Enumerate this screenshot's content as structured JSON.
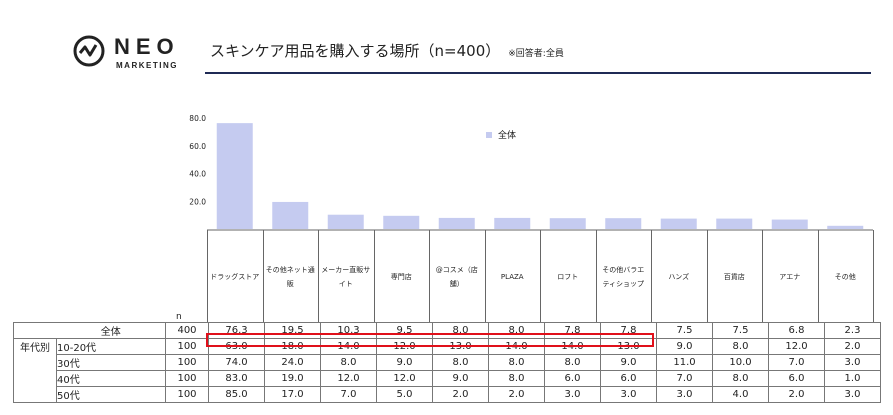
{
  "logo": {
    "brand": "NEO",
    "sub": "MARKETING"
  },
  "title": "スキンケア用品を購入する場所（n=400）",
  "note": "※回答者:全員",
  "chart_data": {
    "type": "bar",
    "categories": [
      "ドラッグストア",
      "その他ネット通販",
      "メーカー直販サイト",
      "専門店",
      "@コスメ(店舗)",
      "PLAZA",
      "ロフト",
      "その他バラエティショップ",
      "ハンズ",
      "百貨店",
      "アエナ",
      "その他"
    ],
    "category_labels": [
      [
        "ドラッグストア"
      ],
      [
        "その他ネット通",
        "販"
      ],
      [
        "メーカー直販サ",
        "イト"
      ],
      [
        "専門店"
      ],
      [
        "@コスメ（店",
        "舗）"
      ],
      [
        "PLAZA"
      ],
      [
        "ロフト"
      ],
      [
        "その他バラエ",
        "ティショップ"
      ],
      [
        "ハンズ"
      ],
      [
        "百貨店"
      ],
      [
        "アエナ"
      ],
      [
        "その他"
      ]
    ],
    "series": [
      {
        "name": "全体",
        "values": [
          76.3,
          19.5,
          10.3,
          9.5,
          8.0,
          8.0,
          7.8,
          7.8,
          7.5,
          7.5,
          6.8,
          2.3
        ]
      }
    ],
    "yticks": [
      "20.0",
      "40.0",
      "60.0",
      "80.0"
    ],
    "ylim": [
      0,
      80
    ],
    "legend": "top-center",
    "bar_color": "#c5cbf0"
  },
  "table": {
    "n_header": "n",
    "group_label": "年代別",
    "rows": [
      {
        "label": "全体",
        "n": "400",
        "values": [
          "76.3",
          "19.5",
          "10.3",
          "9.5",
          "8.0",
          "8.0",
          "7.8",
          "7.8",
          "7.5",
          "7.5",
          "6.8",
          "2.3"
        ]
      },
      {
        "label": "10-20代",
        "n": "100",
        "values": [
          "63.0",
          "18.0",
          "14.0",
          "12.0",
          "13.0",
          "14.0",
          "14.0",
          "13.0",
          "9.0",
          "8.0",
          "12.0",
          "2.0"
        ]
      },
      {
        "label": "30代",
        "n": "100",
        "values": [
          "74.0",
          "24.0",
          "8.0",
          "9.0",
          "8.0",
          "8.0",
          "8.0",
          "9.0",
          "11.0",
          "10.0",
          "7.0",
          "3.0"
        ]
      },
      {
        "label": "40代",
        "n": "100",
        "values": [
          "83.0",
          "19.0",
          "12.0",
          "12.0",
          "9.0",
          "8.0",
          "6.0",
          "6.0",
          "7.0",
          "8.0",
          "6.0",
          "1.0"
        ]
      },
      {
        "label": "50代",
        "n": "100",
        "values": [
          "85.0",
          "17.0",
          "7.0",
          "5.0",
          "2.0",
          "2.0",
          "3.0",
          "3.0",
          "3.0",
          "4.0",
          "2.0",
          "3.0"
        ]
      }
    ]
  }
}
